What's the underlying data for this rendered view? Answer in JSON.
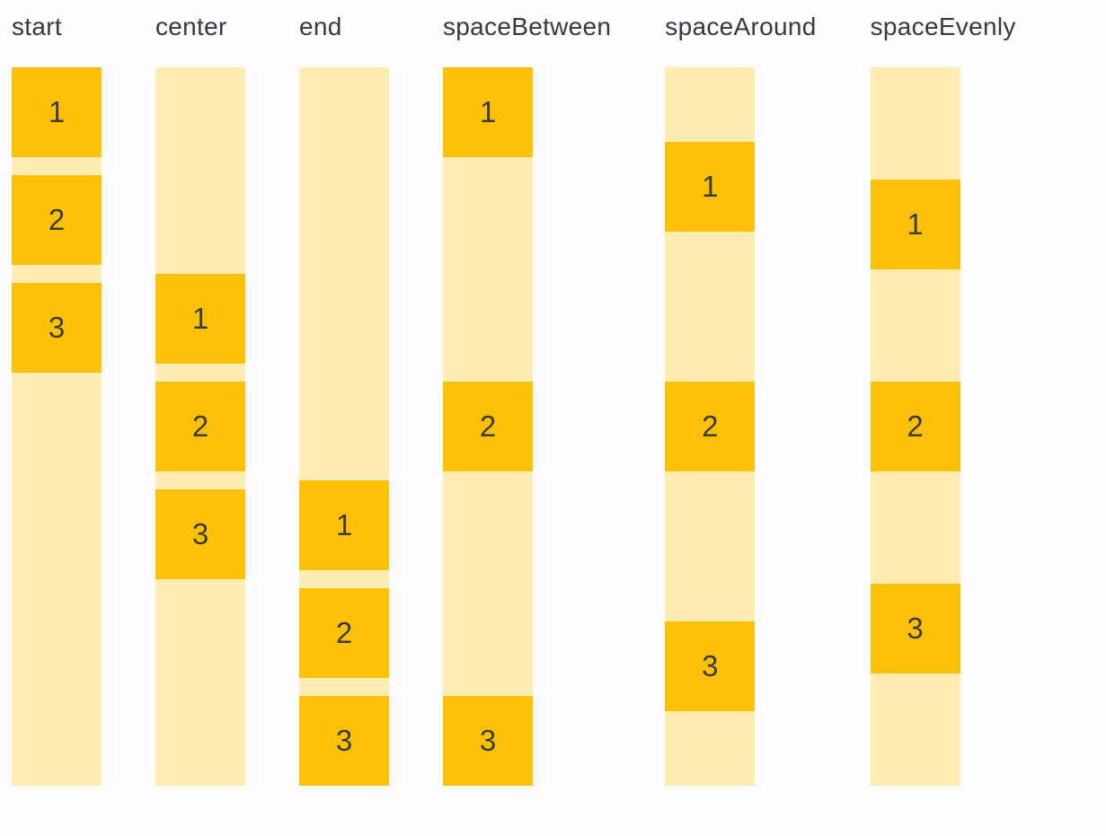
{
  "colors": {
    "page_background": "#FCFCFF",
    "track_fill": "#FFECB3",
    "item_fill": "#FFC107",
    "label_text": "#3A3A3A",
    "item_text": "#3C3C3C"
  },
  "columns": [
    {
      "label": "start",
      "items": [
        "1",
        "2",
        "3"
      ]
    },
    {
      "label": "center",
      "items": [
        "1",
        "2",
        "3"
      ]
    },
    {
      "label": "end",
      "items": [
        "1",
        "2",
        "3"
      ]
    },
    {
      "label": "spaceBetween",
      "items": [
        "1",
        "2",
        "3"
      ]
    },
    {
      "label": "spaceAround",
      "items": [
        "1",
        "2",
        "3"
      ]
    },
    {
      "label": "spaceEvenly",
      "items": [
        "1",
        "2",
        "3"
      ]
    }
  ]
}
